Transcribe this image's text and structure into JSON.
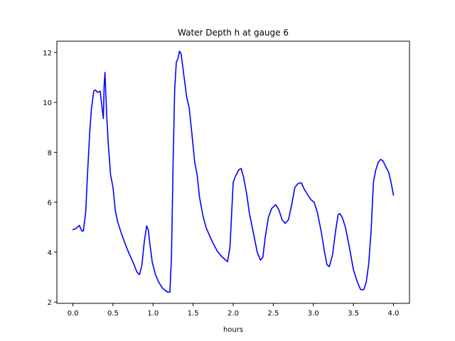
{
  "chart_data": {
    "type": "line",
    "title": "Water Depth h at gauge 6",
    "xlabel": "hours",
    "ylabel": "",
    "xlim": [
      -0.2,
      4.2
    ],
    "ylim": [
      1.95,
      12.45
    ],
    "xticks": [
      0.0,
      0.5,
      1.0,
      1.5,
      2.0,
      2.5,
      3.0,
      3.5,
      4.0
    ],
    "xtick_labels": [
      "0.0",
      "0.5",
      "1.0",
      "1.5",
      "2.0",
      "2.5",
      "3.0",
      "3.5",
      "4.0"
    ],
    "yticks": [
      2,
      4,
      6,
      8,
      10,
      12
    ],
    "ytick_labels": [
      "2",
      "4",
      "6",
      "8",
      "10",
      "12"
    ],
    "grid": false,
    "legend": null,
    "colors": {
      "line": "#0000ff",
      "axes": "#000000",
      "background": "#ffffff"
    },
    "series": [
      {
        "points": [
          [
            0.0,
            4.9
          ],
          [
            0.04,
            4.95
          ],
          [
            0.08,
            5.07
          ],
          [
            0.11,
            4.85
          ],
          [
            0.13,
            4.85
          ],
          [
            0.16,
            5.6
          ],
          [
            0.18,
            7.0
          ],
          [
            0.21,
            8.8
          ],
          [
            0.23,
            9.7
          ],
          [
            0.26,
            10.45
          ],
          [
            0.28,
            10.5
          ],
          [
            0.31,
            10.4
          ],
          [
            0.34,
            10.45
          ],
          [
            0.38,
            9.35
          ],
          [
            0.39,
            10.7
          ],
          [
            0.4,
            11.2
          ],
          [
            0.42,
            9.6
          ],
          [
            0.44,
            8.4
          ],
          [
            0.47,
            7.1
          ],
          [
            0.5,
            6.6
          ],
          [
            0.53,
            5.65
          ],
          [
            0.56,
            5.2
          ],
          [
            0.6,
            4.8
          ],
          [
            0.65,
            4.35
          ],
          [
            0.7,
            3.95
          ],
          [
            0.75,
            3.6
          ],
          [
            0.8,
            3.2
          ],
          [
            0.83,
            3.1
          ],
          [
            0.86,
            3.45
          ],
          [
            0.89,
            4.4
          ],
          [
            0.92,
            5.05
          ],
          [
            0.94,
            4.9
          ],
          [
            0.96,
            4.35
          ],
          [
            0.99,
            3.6
          ],
          [
            1.03,
            3.1
          ],
          [
            1.07,
            2.8
          ],
          [
            1.12,
            2.55
          ],
          [
            1.18,
            2.4
          ],
          [
            1.21,
            2.4
          ],
          [
            1.23,
            3.8
          ],
          [
            1.25,
            7.5
          ],
          [
            1.27,
            10.5
          ],
          [
            1.29,
            11.6
          ],
          [
            1.31,
            11.75
          ],
          [
            1.33,
            12.05
          ],
          [
            1.35,
            11.95
          ],
          [
            1.38,
            11.2
          ],
          [
            1.42,
            10.2
          ],
          [
            1.45,
            9.8
          ],
          [
            1.48,
            8.9
          ],
          [
            1.52,
            7.6
          ],
          [
            1.55,
            7.1
          ],
          [
            1.58,
            6.2
          ],
          [
            1.62,
            5.5
          ],
          [
            1.66,
            5.0
          ],
          [
            1.7,
            4.7
          ],
          [
            1.75,
            4.35
          ],
          [
            1.8,
            4.05
          ],
          [
            1.85,
            3.85
          ],
          [
            1.9,
            3.7
          ],
          [
            1.93,
            3.62
          ],
          [
            1.96,
            4.2
          ],
          [
            1.98,
            5.5
          ],
          [
            2.0,
            6.8
          ],
          [
            2.03,
            7.05
          ],
          [
            2.07,
            7.3
          ],
          [
            2.1,
            7.35
          ],
          [
            2.13,
            7.0
          ],
          [
            2.17,
            6.3
          ],
          [
            2.2,
            5.6
          ],
          [
            2.25,
            4.8
          ],
          [
            2.3,
            4.0
          ],
          [
            2.34,
            3.68
          ],
          [
            2.37,
            3.8
          ],
          [
            2.4,
            4.6
          ],
          [
            2.44,
            5.4
          ],
          [
            2.48,
            5.75
          ],
          [
            2.53,
            5.9
          ],
          [
            2.57,
            5.7
          ],
          [
            2.61,
            5.3
          ],
          [
            2.65,
            5.15
          ],
          [
            2.69,
            5.3
          ],
          [
            2.73,
            5.9
          ],
          [
            2.77,
            6.6
          ],
          [
            2.81,
            6.75
          ],
          [
            2.85,
            6.78
          ],
          [
            2.89,
            6.5
          ],
          [
            2.93,
            6.3
          ],
          [
            2.97,
            6.1
          ],
          [
            3.01,
            6.0
          ],
          [
            3.05,
            5.6
          ],
          [
            3.1,
            4.8
          ],
          [
            3.14,
            4.0
          ],
          [
            3.17,
            3.5
          ],
          [
            3.2,
            3.42
          ],
          [
            3.24,
            3.9
          ],
          [
            3.28,
            4.9
          ],
          [
            3.31,
            5.5
          ],
          [
            3.33,
            5.55
          ],
          [
            3.36,
            5.4
          ],
          [
            3.4,
            5.0
          ],
          [
            3.45,
            4.2
          ],
          [
            3.5,
            3.3
          ],
          [
            3.55,
            2.8
          ],
          [
            3.59,
            2.5
          ],
          [
            3.63,
            2.5
          ],
          [
            3.66,
            2.8
          ],
          [
            3.69,
            3.5
          ],
          [
            3.72,
            4.8
          ],
          [
            3.75,
            6.8
          ],
          [
            3.78,
            7.3
          ],
          [
            3.81,
            7.6
          ],
          [
            3.84,
            7.72
          ],
          [
            3.87,
            7.65
          ],
          [
            3.9,
            7.45
          ],
          [
            3.94,
            7.2
          ],
          [
            3.97,
            6.8
          ],
          [
            4.0,
            6.28
          ]
        ]
      }
    ]
  }
}
